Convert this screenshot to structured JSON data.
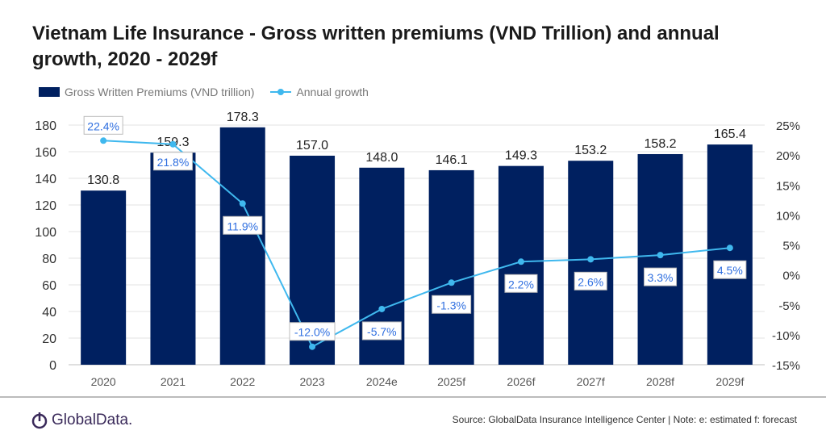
{
  "chart_data": {
    "type": "bar+line",
    "title": "Vietnam Life Insurance - Gross written premiums (VND Trillion) and annual growth, 2020 - 2029f",
    "categories": [
      "2020",
      "2021",
      "2022",
      "2023",
      "2024e",
      "2025f",
      "2026f",
      "2027f",
      "2028f",
      "2029f"
    ],
    "series": [
      {
        "name": "Gross Written Premiums (VND trillion)",
        "type": "bar",
        "axis": "left",
        "color": "#002060",
        "values": [
          130.8,
          159.3,
          178.3,
          157.0,
          148.0,
          146.1,
          149.3,
          153.2,
          158.2,
          165.4
        ],
        "labels": [
          "130.8",
          "159.3",
          "178.3",
          "157.0",
          "148.0",
          "146.1",
          "149.3",
          "153.2",
          "158.2",
          "165.4"
        ]
      },
      {
        "name": "Annual growth",
        "type": "line",
        "axis": "right",
        "color": "#3fb8ee",
        "values": [
          22.4,
          21.8,
          11.9,
          -12.0,
          -5.7,
          -1.3,
          2.2,
          2.6,
          3.3,
          4.5
        ],
        "labels": [
          "22.4%",
          "21.8%",
          "11.9%",
          "-12.0%",
          "-5.7%",
          "-1.3%",
          "2.2%",
          "2.6%",
          "3.3%",
          "4.5%"
        ]
      }
    ],
    "ylim": [
      0,
      180
    ],
    "yticks": [
      "0",
      "20",
      "40",
      "60",
      "80",
      "100",
      "120",
      "140",
      "160",
      "180"
    ],
    "y2lim": [
      -15,
      25
    ],
    "y2ticks": [
      "-15%",
      "-10%",
      "-5%",
      "0%",
      "5%",
      "10%",
      "15%",
      "20%",
      "25%"
    ],
    "grid": true,
    "legend": "top-left"
  },
  "footer": {
    "logo": "GlobalData.",
    "source": "Source: GlobalData Insurance Intelligence Center | Note: e: estimated  f: forecast"
  }
}
